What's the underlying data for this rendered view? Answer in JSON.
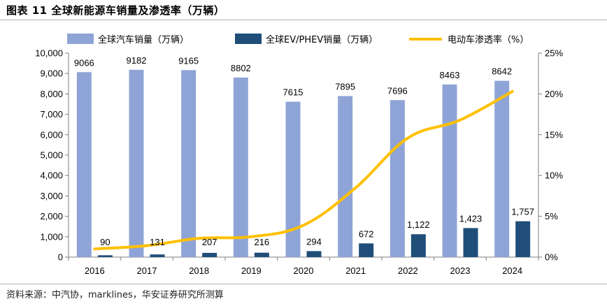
{
  "figure": {
    "title": "图表 11  全球新能源车销量及渗透率（万辆）",
    "source": "资料来源：中汽协，marklines，华安证券研究所测算"
  },
  "colors": {
    "total_bar": "#8fa4d6",
    "ev_bar": "#1f4e79",
    "penetration_line": "#ffc000",
    "axis": "#7f7f7f"
  },
  "chart_data": {
    "type": "bar",
    "categories": [
      "2016",
      "2017",
      "2018",
      "2019",
      "2020",
      "2021",
      "2022",
      "2023",
      "2024"
    ],
    "series": [
      {
        "name": "全球汽车销量（万辆）",
        "type": "bar",
        "axis": "left",
        "values": [
          9066,
          9182,
          9165,
          8802,
          7615,
          7895,
          7696,
          8463,
          8642
        ],
        "labels": [
          "9066",
          "9182",
          "9165",
          "8802",
          "7615",
          "7895",
          "7696",
          "8463",
          "8642"
        ]
      },
      {
        "name": "全球EV/PHEV销量（万辆）",
        "type": "bar",
        "axis": "left",
        "values": [
          90,
          131,
          207,
          216,
          294,
          672,
          1122,
          1423,
          1757
        ],
        "labels": [
          "90",
          "131",
          "207",
          "216",
          "294",
          "672",
          "1,122",
          "1,423",
          "1,757"
        ]
      },
      {
        "name": "电动车渗透率（%）",
        "type": "line",
        "axis": "right",
        "values": [
          1.0,
          1.4,
          2.3,
          2.5,
          3.9,
          8.5,
          14.6,
          16.8,
          20.3
        ]
      }
    ],
    "y_left": {
      "min": 0,
      "max": 10000,
      "step": 1000,
      "tick_labels": [
        "0",
        "1,000",
        "2,000",
        "3,000",
        "4,000",
        "5,000",
        "6,000",
        "7,000",
        "8,000",
        "9,000",
        "10,000"
      ]
    },
    "y_right": {
      "min": 0,
      "max": 25,
      "step": 5,
      "tick_labels": [
        "0%",
        "5%",
        "10%",
        "15%",
        "20%",
        "25%"
      ]
    },
    "legend_position": "top",
    "grid": false
  }
}
